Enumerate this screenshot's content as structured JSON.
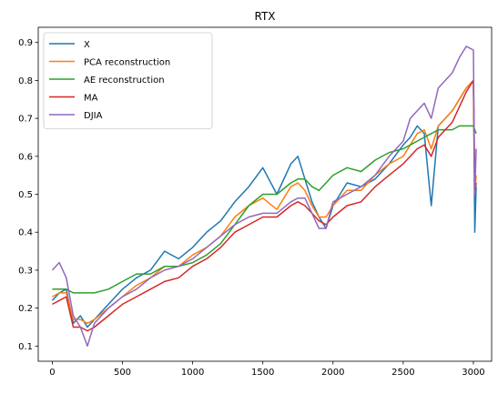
{
  "chart_data": {
    "type": "line",
    "title": "RTX",
    "xlabel": "",
    "ylabel": "",
    "xlim": [
      -100,
      3130
    ],
    "ylim": [
      0.06,
      0.94
    ],
    "x_ticks": [
      0,
      500,
      1000,
      1500,
      2000,
      2500,
      3000
    ],
    "y_ticks": [
      0.1,
      0.2,
      0.3,
      0.4,
      0.5,
      0.6,
      0.7,
      0.8,
      0.9
    ],
    "grid": false,
    "legend_position": "top-left",
    "x": [
      0,
      50,
      100,
      150,
      200,
      250,
      300,
      400,
      500,
      600,
      700,
      800,
      900,
      1000,
      1100,
      1200,
      1300,
      1400,
      1500,
      1600,
      1700,
      1750,
      1800,
      1850,
      1900,
      1950,
      2000,
      2100,
      2200,
      2300,
      2400,
      2500,
      2550,
      2600,
      2650,
      2700,
      2750,
      2800,
      2850,
      2900,
      2950,
      3000,
      3010,
      3020
    ],
    "series": [
      {
        "name": "X",
        "color": "#1f77b4",
        "values": [
          0.22,
          0.24,
          0.25,
          0.16,
          0.18,
          0.15,
          0.17,
          0.21,
          0.25,
          0.28,
          0.3,
          0.35,
          0.33,
          0.36,
          0.4,
          0.43,
          0.48,
          0.52,
          0.57,
          0.5,
          0.58,
          0.6,
          0.54,
          0.48,
          0.44,
          0.41,
          0.47,
          0.53,
          0.52,
          0.54,
          0.58,
          0.63,
          0.65,
          0.68,
          0.66,
          0.47,
          0.68,
          0.7,
          0.72,
          0.75,
          0.78,
          0.8,
          0.4,
          0.52
        ]
      },
      {
        "name": "PCA reconstruction",
        "color": "#ff7f0e",
        "values": [
          0.23,
          0.24,
          0.24,
          0.17,
          0.17,
          0.16,
          0.17,
          0.2,
          0.23,
          0.26,
          0.28,
          0.31,
          0.31,
          0.34,
          0.36,
          0.39,
          0.44,
          0.47,
          0.49,
          0.46,
          0.52,
          0.53,
          0.51,
          0.47,
          0.44,
          0.44,
          0.47,
          0.51,
          0.51,
          0.55,
          0.58,
          0.6,
          0.63,
          0.66,
          0.67,
          0.62,
          0.68,
          0.7,
          0.72,
          0.75,
          0.78,
          0.8,
          0.5,
          0.55
        ]
      },
      {
        "name": "AE reconstruction",
        "color": "#2ca02c",
        "values": [
          0.25,
          0.25,
          0.25,
          0.24,
          0.24,
          0.24,
          0.24,
          0.25,
          0.27,
          0.29,
          0.29,
          0.31,
          0.31,
          0.32,
          0.34,
          0.37,
          0.42,
          0.47,
          0.5,
          0.5,
          0.53,
          0.54,
          0.54,
          0.52,
          0.51,
          0.53,
          0.55,
          0.57,
          0.56,
          0.59,
          0.61,
          0.62,
          0.63,
          0.64,
          0.65,
          0.66,
          0.67,
          0.67,
          0.67,
          0.68,
          0.68,
          0.68,
          0.67,
          0.66
        ]
      },
      {
        "name": "MA",
        "color": "#d62728",
        "values": [
          0.21,
          0.22,
          0.23,
          0.15,
          0.15,
          0.14,
          0.15,
          0.18,
          0.21,
          0.23,
          0.25,
          0.27,
          0.28,
          0.31,
          0.33,
          0.36,
          0.4,
          0.42,
          0.44,
          0.44,
          0.47,
          0.48,
          0.47,
          0.45,
          0.43,
          0.42,
          0.44,
          0.47,
          0.48,
          0.52,
          0.55,
          0.58,
          0.6,
          0.62,
          0.63,
          0.6,
          0.65,
          0.67,
          0.69,
          0.73,
          0.77,
          0.8,
          0.5,
          0.53
        ]
      },
      {
        "name": "DJIA",
        "color": "#9467bd",
        "values": [
          0.3,
          0.32,
          0.28,
          0.18,
          0.15,
          0.1,
          0.16,
          0.2,
          0.23,
          0.25,
          0.28,
          0.3,
          0.31,
          0.33,
          0.36,
          0.39,
          0.42,
          0.44,
          0.45,
          0.45,
          0.48,
          0.49,
          0.49,
          0.45,
          0.41,
          0.41,
          0.48,
          0.5,
          0.52,
          0.55,
          0.6,
          0.64,
          0.7,
          0.72,
          0.74,
          0.7,
          0.78,
          0.8,
          0.82,
          0.86,
          0.89,
          0.88,
          0.5,
          0.62
        ]
      }
    ]
  }
}
